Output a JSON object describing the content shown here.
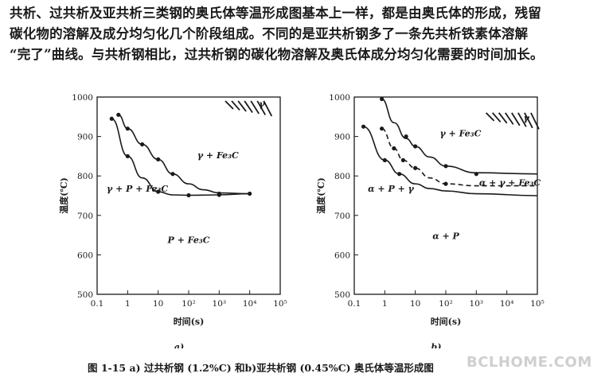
{
  "paragraph": {
    "line1": "共析、过共析及亚共析三类钢的奥氏体等温形成图基本上一样，都是由奥氏体的形成，残留",
    "line2": "碳化物的溶解及成分均匀化几个阶段组成。不同的是亚共析钢多了一条先共析铁素体溶解",
    "line3": "“完了”曲线。与共析钢相比，过共析钢的碳化物溶解及奥氏体成分均匀化需要的时间加长。"
  },
  "caption": "图 1-15  a) 过共析钢 (1.2%C) 和b)亚共析钢 (0.45%C) 奥氏体等温形成图",
  "watermark": "BCLHOME.COM",
  "chart_data": [
    {
      "type": "line",
      "panel_label": "a)",
      "xlabel": "时间(s)",
      "ylabel": "温度(℃)",
      "x_scale": "log",
      "xlim": [
        0.1,
        100000
      ],
      "ylim": [
        500,
        1000
      ],
      "x_ticks": [
        "0.1",
        "1",
        "10",
        "10²",
        "10³",
        "10⁴",
        "10⁵"
      ],
      "y_ticks": [
        "500",
        "600",
        "700",
        "800",
        "900",
        "1000"
      ],
      "grid": false,
      "series": [
        {
          "points": [
            [
              0.3,
              945
            ],
            [
              1,
              850
            ],
            [
              3,
              795
            ],
            [
              10,
              760
            ],
            [
              30,
              752
            ],
            [
              100,
              751
            ],
            [
              1000,
              752
            ],
            [
              10000,
              755
            ]
          ],
          "markers": [
            [
              0.3,
              945
            ],
            [
              1,
              850
            ],
            [
              10,
              760
            ],
            [
              100,
              751
            ],
            [
              1000,
              752
            ]
          ]
        },
        {
          "points": [
            [
              0.5,
              955
            ],
            [
              1,
              920
            ],
            [
              3,
              880
            ],
            [
              10,
              842
            ],
            [
              30,
              805
            ],
            [
              100,
              780
            ],
            [
              300,
              765
            ],
            [
              1000,
              757
            ],
            [
              10000,
              755
            ]
          ],
          "markers": [
            [
              0.5,
              955
            ],
            [
              1,
              920
            ],
            [
              3,
              880
            ],
            [
              10,
              842
            ],
            [
              30,
              805
            ],
            [
              1000,
              755
            ],
            [
              10000,
              755
            ]
          ]
        }
      ],
      "region_labels": [
        "γ",
        "γ + Fe₃C",
        "γ + P + Fe₃C",
        "P + Fe₃C"
      ]
    },
    {
      "type": "line",
      "panel_label": "b)",
      "xlabel": "时间(s)",
      "ylabel": "温度(℃)",
      "x_scale": "log",
      "xlim": [
        0.1,
        100000
      ],
      "ylim": [
        500,
        1000
      ],
      "x_ticks": [
        "0.1",
        "1",
        "10",
        "10²",
        "10³",
        "10⁴",
        "10⁵"
      ],
      "y_ticks": [
        "500",
        "600",
        "700",
        "800",
        "900",
        "1000"
      ],
      "grid": false,
      "series": [
        {
          "points": [
            [
              0.2,
              925
            ],
            [
              1,
              840
            ],
            [
              3,
              805
            ],
            [
              10,
              780
            ],
            [
              30,
              768
            ],
            [
              100,
              762
            ],
            [
              1000,
              755
            ],
            [
              100000,
              750
            ]
          ],
          "markers": [
            [
              0.2,
              925
            ],
            [
              1,
              840
            ],
            [
              3,
              805
            ]
          ]
        },
        {
          "points": [
            [
              0.8,
              920
            ],
            [
              2,
              870
            ],
            [
              4,
              840
            ],
            [
              10,
              820
            ],
            [
              30,
              795
            ],
            [
              100,
              780
            ],
            [
              1000,
              775
            ],
            [
              100000,
              775
            ]
          ],
          "dashed": true,
          "markers": [
            [
              0.8,
              920
            ],
            [
              2,
              870
            ],
            [
              4,
              840
            ],
            [
              10,
              820
            ],
            [
              100,
              780
            ]
          ]
        },
        {
          "points": [
            [
              0.8,
              995
            ],
            [
              2,
              935
            ],
            [
              5,
              895
            ],
            [
              10,
              875
            ],
            [
              30,
              848
            ],
            [
              100,
              825
            ],
            [
              1000,
              808
            ],
            [
              100000,
              805
            ]
          ],
          "markers": [
            [
              0.8,
              995
            ],
            [
              5,
              900
            ],
            [
              10,
              875
            ],
            [
              100,
              825
            ],
            [
              1000,
              805
            ]
          ]
        }
      ],
      "region_labels": [
        "γ",
        "γ + Fe₃C",
        "α + P + γ",
        "α + γ + Fe₃C",
        "α + P"
      ]
    }
  ]
}
